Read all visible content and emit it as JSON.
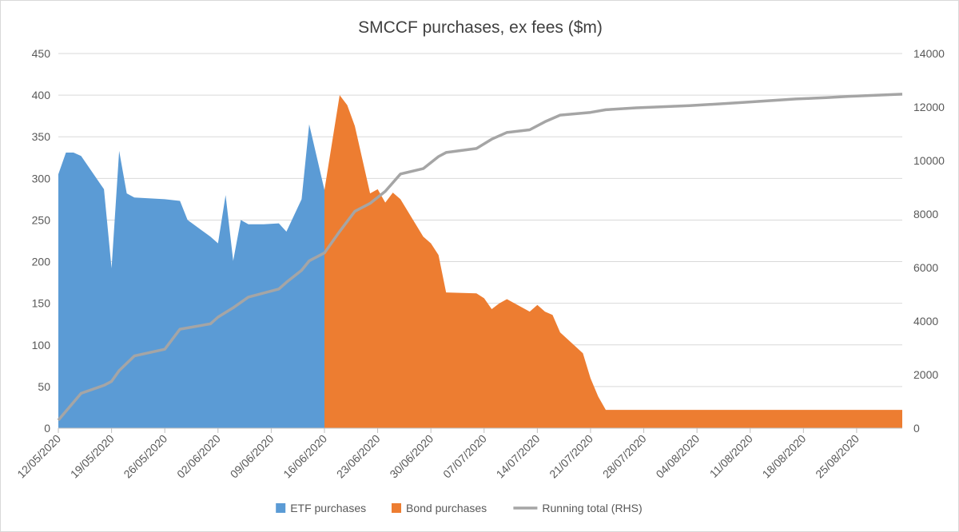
{
  "chart_data": {
    "type": "area",
    "title": "SMCCF purchases, ex fees ($m)",
    "xlabel": "",
    "ylabel": "",
    "ylim": [
      0,
      450
    ],
    "y2lim": [
      0,
      14000
    ],
    "yticks": [
      "0",
      "50",
      "100",
      "150",
      "200",
      "250",
      "300",
      "350",
      "400",
      "450"
    ],
    "y2ticks": [
      "0",
      "2000",
      "4000",
      "6000",
      "8000",
      "10000",
      "12000",
      "14000"
    ],
    "xticks": [
      "12/05/2020",
      "19/05/2020",
      "26/05/2020",
      "02/06/2020",
      "09/06/2020",
      "16/06/2020",
      "23/06/2020",
      "30/06/2020",
      "07/07/2020",
      "14/07/2020",
      "21/07/2020",
      "28/07/2020",
      "04/08/2020",
      "11/08/2020",
      "18/08/2020",
      "25/08/2020"
    ],
    "x_start_date": "12/05/2020",
    "x_end_date": "31/08/2020",
    "grid": "horizontal",
    "legend_position": "bottom",
    "series": [
      {
        "name": "ETF purchases",
        "kind": "area",
        "axis": "left",
        "color": "#5B9BD5",
        "points": [
          [
            "12/05/2020",
            0
          ],
          [
            "12/05/2020",
            305
          ],
          [
            "13/05/2020",
            331
          ],
          [
            "14/05/2020",
            331
          ],
          [
            "15/05/2020",
            327
          ],
          [
            "18/05/2020",
            287
          ],
          [
            "19/05/2020",
            192
          ],
          [
            "20/05/2020",
            333
          ],
          [
            "21/05/2020",
            282
          ],
          [
            "22/05/2020",
            277
          ],
          [
            "26/05/2020",
            275
          ],
          [
            "28/05/2020",
            273
          ],
          [
            "29/05/2020",
            250
          ],
          [
            "01/06/2020",
            230
          ],
          [
            "02/06/2020",
            222
          ],
          [
            "03/06/2020",
            280
          ],
          [
            "04/06/2020",
            201
          ],
          [
            "05/06/2020",
            250
          ],
          [
            "06/06/2020",
            245
          ],
          [
            "08/06/2020",
            245
          ],
          [
            "10/06/2020",
            246
          ],
          [
            "11/06/2020",
            236
          ],
          [
            "13/06/2020",
            275
          ],
          [
            "14/06/2020",
            365
          ],
          [
            "16/06/2020",
            286
          ],
          [
            "17/06/2020",
            115
          ],
          [
            "18/06/2020",
            195
          ],
          [
            "19/06/2020",
            193
          ],
          [
            "20/06/2020",
            207
          ],
          [
            "22/06/2020",
            125
          ],
          [
            "23/06/2020",
            118
          ],
          [
            "24/06/2020",
            108
          ],
          [
            "25/06/2020",
            113
          ],
          [
            "26/06/2020",
            108
          ],
          [
            "29/06/2020",
            68
          ],
          [
            "30/06/2020",
            71
          ],
          [
            "01/07/2020",
            58
          ],
          [
            "02/07/2020",
            47
          ],
          [
            "06/07/2020",
            35
          ],
          [
            "07/07/2020",
            30
          ],
          [
            "08/07/2020",
            34
          ],
          [
            "09/07/2020",
            32
          ],
          [
            "10/07/2020",
            35
          ],
          [
            "13/07/2020",
            30
          ],
          [
            "14/07/2020",
            36
          ],
          [
            "15/07/2020",
            31
          ],
          [
            "16/07/2020",
            29
          ],
          [
            "20/07/2020",
            15
          ],
          [
            "21/07/2020",
            8
          ],
          [
            "22/07/2020",
            3
          ],
          [
            "24/07/2020",
            0
          ]
        ]
      },
      {
        "name": "Bond purchases",
        "kind": "area",
        "axis": "left",
        "color": "#ED7D31",
        "points": [
          [
            "16/06/2020",
            0
          ],
          [
            "16/06/2020",
            286
          ],
          [
            "18/06/2020",
            400
          ],
          [
            "19/06/2020",
            388
          ],
          [
            "20/06/2020",
            363
          ],
          [
            "22/06/2020",
            282
          ],
          [
            "23/06/2020",
            287
          ],
          [
            "24/06/2020",
            271
          ],
          [
            "25/06/2020",
            283
          ],
          [
            "26/06/2020",
            275
          ],
          [
            "29/06/2020",
            230
          ],
          [
            "30/06/2020",
            222
          ],
          [
            "01/07/2020",
            208
          ],
          [
            "02/07/2020",
            163
          ],
          [
            "06/07/2020",
            162
          ],
          [
            "07/07/2020",
            156
          ],
          [
            "08/07/2020",
            143
          ],
          [
            "09/07/2020",
            150
          ],
          [
            "10/07/2020",
            155
          ],
          [
            "13/07/2020",
            140
          ],
          [
            "14/07/2020",
            148
          ],
          [
            "15/07/2020",
            140
          ],
          [
            "16/07/2020",
            136
          ],
          [
            "17/07/2020",
            115
          ],
          [
            "20/07/2020",
            90
          ],
          [
            "21/07/2020",
            60
          ],
          [
            "22/07/2020",
            38
          ],
          [
            "23/07/2020",
            22
          ],
          [
            "27/07/2020",
            22
          ],
          [
            "31/08/2020",
            22
          ],
          [
            "31/08/2020",
            0
          ]
        ]
      },
      {
        "name": "Running total (RHS)",
        "kind": "line",
        "axis": "right",
        "color": "#A5A5A5",
        "points": [
          [
            "12/05/2020",
            300
          ],
          [
            "15/05/2020",
            1300
          ],
          [
            "18/05/2020",
            1600
          ],
          [
            "19/05/2020",
            1750
          ],
          [
            "20/05/2020",
            2150
          ],
          [
            "22/05/2020",
            2700
          ],
          [
            "26/05/2020",
            2950
          ],
          [
            "28/05/2020",
            3700
          ],
          [
            "01/06/2020",
            3900
          ],
          [
            "02/06/2020",
            4150
          ],
          [
            "04/06/2020",
            4500
          ],
          [
            "06/06/2020",
            4900
          ],
          [
            "10/06/2020",
            5200
          ],
          [
            "11/06/2020",
            5450
          ],
          [
            "13/06/2020",
            5900
          ],
          [
            "14/06/2020",
            6250
          ],
          [
            "16/06/2020",
            6550
          ],
          [
            "18/06/2020",
            7350
          ],
          [
            "20/06/2020",
            8100
          ],
          [
            "22/06/2020",
            8400
          ],
          [
            "24/06/2020",
            8850
          ],
          [
            "26/06/2020",
            9500
          ],
          [
            "29/06/2020",
            9700
          ],
          [
            "01/07/2020",
            10150
          ],
          [
            "02/07/2020",
            10300
          ],
          [
            "06/07/2020",
            10450
          ],
          [
            "08/07/2020",
            10800
          ],
          [
            "10/07/2020",
            11050
          ],
          [
            "13/07/2020",
            11150
          ],
          [
            "15/07/2020",
            11450
          ],
          [
            "17/07/2020",
            11700
          ],
          [
            "21/07/2020",
            11800
          ],
          [
            "23/07/2020",
            11900
          ],
          [
            "27/07/2020",
            11970
          ],
          [
            "03/08/2020",
            12050
          ],
          [
            "10/08/2020",
            12170
          ],
          [
            "17/08/2020",
            12300
          ],
          [
            "21/08/2020",
            12350
          ],
          [
            "24/08/2020",
            12400
          ],
          [
            "31/08/2020",
            12480
          ]
        ]
      }
    ]
  }
}
